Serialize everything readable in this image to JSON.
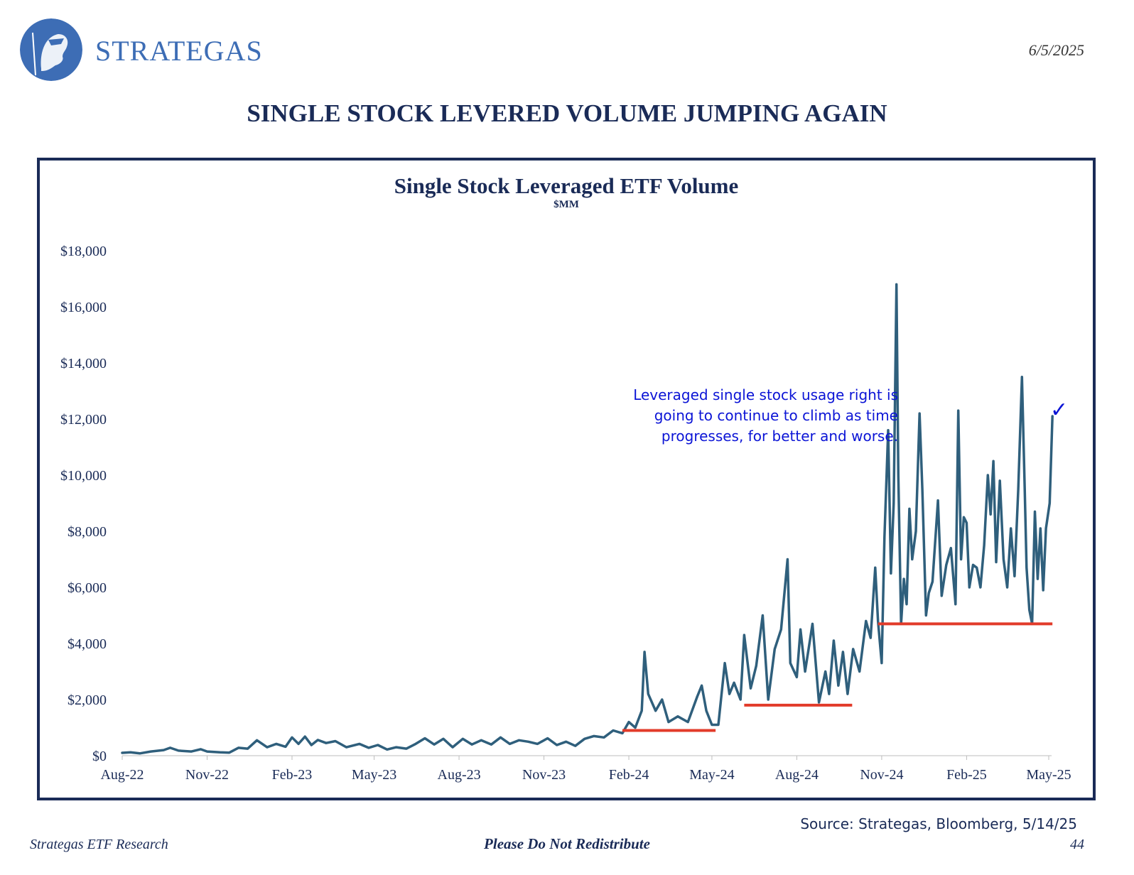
{
  "header": {
    "brand": "STRATEGAS",
    "date": "6/5/2025",
    "title": "SINGLE STOCK LEVERED VOLUME JUMPING AGAIN"
  },
  "annotation": {
    "lines": [
      "Leveraged single stock usage right is",
      "going to continue to climb as time",
      "progresses, for better and worse."
    ],
    "checkmark": "✓"
  },
  "footer": {
    "source": "Source: Strategas, Bloomberg, 5/14/25",
    "left": "Strategas ETF Research",
    "center": "Please Do Not Redistribute",
    "page": "44"
  },
  "colors": {
    "brand_blue": "#3d6db5",
    "navy": "#1a2b57",
    "series": "#2f5f7c",
    "support_line": "#e23b2a",
    "annotation": "#0b14d6"
  },
  "chart_data": {
    "type": "line",
    "title": "Single Stock Leveraged ETF Volume",
    "subtitle": "$MM",
    "xlabel": "",
    "ylabel": "",
    "ylim": [
      0,
      18000
    ],
    "yticks": [
      0,
      2000,
      4000,
      6000,
      8000,
      10000,
      12000,
      14000,
      16000,
      18000
    ],
    "ytick_labels": [
      "$0",
      "$2,000",
      "$4,000",
      "$6,000",
      "$8,000",
      "$10,000",
      "$12,000",
      "$14,000",
      "$16,000",
      "$18,000"
    ],
    "xlim": [
      "2022-08-01",
      "2025-05-01"
    ],
    "xticks": [
      "2022-08-01",
      "2022-11-01",
      "2023-02-01",
      "2023-05-01",
      "2023-08-01",
      "2023-11-01",
      "2024-02-01",
      "2024-05-01",
      "2024-08-01",
      "2024-11-01",
      "2025-02-01",
      "2025-05-01"
    ],
    "xtick_labels": [
      "Aug-22",
      "Nov-22",
      "Feb-23",
      "May-23",
      "Aug-23",
      "Nov-23",
      "Feb-24",
      "May-24",
      "Aug-24",
      "Nov-24",
      "Feb-25",
      "May-25"
    ],
    "grid": false,
    "legend": "none",
    "series": [
      {
        "points": [
          [
            "2022-08-01",
            100
          ],
          [
            "2022-08-10",
            120
          ],
          [
            "2022-08-20",
            80
          ],
          [
            "2022-09-01",
            150
          ],
          [
            "2022-09-15",
            200
          ],
          [
            "2022-09-22",
            280
          ],
          [
            "2022-10-01",
            180
          ],
          [
            "2022-10-15",
            150
          ],
          [
            "2022-10-25",
            230
          ],
          [
            "2022-11-01",
            150
          ],
          [
            "2022-11-15",
            120
          ],
          [
            "2022-11-25",
            110
          ],
          [
            "2022-12-05",
            280
          ],
          [
            "2022-12-15",
            250
          ],
          [
            "2022-12-25",
            550
          ],
          [
            "2023-01-05",
            300
          ],
          [
            "2023-01-15",
            420
          ],
          [
            "2023-01-25",
            320
          ],
          [
            "2023-02-01",
            650
          ],
          [
            "2023-02-08",
            420
          ],
          [
            "2023-02-15",
            680
          ],
          [
            "2023-02-22",
            380
          ],
          [
            "2023-03-01",
            560
          ],
          [
            "2023-03-10",
            450
          ],
          [
            "2023-03-20",
            520
          ],
          [
            "2023-04-01",
            300
          ],
          [
            "2023-04-15",
            420
          ],
          [
            "2023-04-25",
            280
          ],
          [
            "2023-05-05",
            380
          ],
          [
            "2023-05-15",
            220
          ],
          [
            "2023-05-25",
            300
          ],
          [
            "2023-06-05",
            250
          ],
          [
            "2023-06-15",
            420
          ],
          [
            "2023-06-25",
            620
          ],
          [
            "2023-07-05",
            400
          ],
          [
            "2023-07-15",
            600
          ],
          [
            "2023-07-25",
            300
          ],
          [
            "2023-08-05",
            600
          ],
          [
            "2023-08-15",
            400
          ],
          [
            "2023-08-25",
            550
          ],
          [
            "2023-09-05",
            400
          ],
          [
            "2023-09-15",
            650
          ],
          [
            "2023-09-25",
            420
          ],
          [
            "2023-10-05",
            550
          ],
          [
            "2023-10-15",
            500
          ],
          [
            "2023-10-25",
            420
          ],
          [
            "2023-11-05",
            620
          ],
          [
            "2023-11-15",
            380
          ],
          [
            "2023-11-25",
            500
          ],
          [
            "2023-12-05",
            350
          ],
          [
            "2023-12-15",
            600
          ],
          [
            "2023-12-25",
            700
          ],
          [
            "2024-01-05",
            650
          ],
          [
            "2024-01-15",
            900
          ],
          [
            "2024-01-25",
            800
          ],
          [
            "2024-02-01",
            1200
          ],
          [
            "2024-02-08",
            1000
          ],
          [
            "2024-02-15",
            1600
          ],
          [
            "2024-02-18",
            3700
          ],
          [
            "2024-02-22",
            2200
          ],
          [
            "2024-03-01",
            1600
          ],
          [
            "2024-03-08",
            2000
          ],
          [
            "2024-03-15",
            1200
          ],
          [
            "2024-03-25",
            1400
          ],
          [
            "2024-04-05",
            1200
          ],
          [
            "2024-04-15",
            2100
          ],
          [
            "2024-04-20",
            2500
          ],
          [
            "2024-04-25",
            1600
          ],
          [
            "2024-05-01",
            1100
          ],
          [
            "2024-05-08",
            1100
          ],
          [
            "2024-05-15",
            3300
          ],
          [
            "2024-05-20",
            2200
          ],
          [
            "2024-05-25",
            2600
          ],
          [
            "2024-06-01",
            2000
          ],
          [
            "2024-06-05",
            4300
          ],
          [
            "2024-06-12",
            2400
          ],
          [
            "2024-06-18",
            3200
          ],
          [
            "2024-06-25",
            5000
          ],
          [
            "2024-07-01",
            2000
          ],
          [
            "2024-07-08",
            3800
          ],
          [
            "2024-07-15",
            4500
          ],
          [
            "2024-07-22",
            7000
          ],
          [
            "2024-07-25",
            3300
          ],
          [
            "2024-08-01",
            2800
          ],
          [
            "2024-08-05",
            4500
          ],
          [
            "2024-08-10",
            3000
          ],
          [
            "2024-08-18",
            4700
          ],
          [
            "2024-08-25",
            1900
          ],
          [
            "2024-09-01",
            3000
          ],
          [
            "2024-09-05",
            2200
          ],
          [
            "2024-09-10",
            4100
          ],
          [
            "2024-09-15",
            2500
          ],
          [
            "2024-09-20",
            3700
          ],
          [
            "2024-09-25",
            2200
          ],
          [
            "2024-10-01",
            3800
          ],
          [
            "2024-10-08",
            3000
          ],
          [
            "2024-10-15",
            4800
          ],
          [
            "2024-10-20",
            4200
          ],
          [
            "2024-10-25",
            6700
          ],
          [
            "2024-10-28",
            4800
          ],
          [
            "2024-11-01",
            3300
          ],
          [
            "2024-11-04",
            7800
          ],
          [
            "2024-11-08",
            11600
          ],
          [
            "2024-11-11",
            6500
          ],
          [
            "2024-11-14",
            9000
          ],
          [
            "2024-11-17",
            16800
          ],
          [
            "2024-11-19",
            10000
          ],
          [
            "2024-11-22",
            4700
          ],
          [
            "2024-11-25",
            6300
          ],
          [
            "2024-11-28",
            5400
          ],
          [
            "2024-12-01",
            8800
          ],
          [
            "2024-12-04",
            7000
          ],
          [
            "2024-12-08",
            8000
          ],
          [
            "2024-12-12",
            12200
          ],
          [
            "2024-12-15",
            9500
          ],
          [
            "2024-12-19",
            5000
          ],
          [
            "2024-12-22",
            5800
          ],
          [
            "2024-12-26",
            6200
          ],
          [
            "2025-01-01",
            9100
          ],
          [
            "2025-01-05",
            5700
          ],
          [
            "2025-01-10",
            6800
          ],
          [
            "2025-01-15",
            7400
          ],
          [
            "2025-01-20",
            5400
          ],
          [
            "2025-01-23",
            12300
          ],
          [
            "2025-01-26",
            7000
          ],
          [
            "2025-01-29",
            8500
          ],
          [
            "2025-02-01",
            8300
          ],
          [
            "2025-02-04",
            6000
          ],
          [
            "2025-02-08",
            6800
          ],
          [
            "2025-02-12",
            6700
          ],
          [
            "2025-02-16",
            6000
          ],
          [
            "2025-02-20",
            7500
          ],
          [
            "2025-02-24",
            10000
          ],
          [
            "2025-02-27",
            8600
          ],
          [
            "2025-03-02",
            10500
          ],
          [
            "2025-03-05",
            6900
          ],
          [
            "2025-03-09",
            9800
          ],
          [
            "2025-03-13",
            7000
          ],
          [
            "2025-03-17",
            6000
          ],
          [
            "2025-03-21",
            8100
          ],
          [
            "2025-03-25",
            6400
          ],
          [
            "2025-03-29",
            9500
          ],
          [
            "2025-04-02",
            13500
          ],
          [
            "2025-04-05",
            9500
          ],
          [
            "2025-04-07",
            6700
          ],
          [
            "2025-04-10",
            5200
          ],
          [
            "2025-04-13",
            4700
          ],
          [
            "2025-04-16",
            8700
          ],
          [
            "2025-04-19",
            6300
          ],
          [
            "2025-04-22",
            8100
          ],
          [
            "2025-04-25",
            5900
          ],
          [
            "2025-04-28",
            8100
          ],
          [
            "2025-05-02",
            9000
          ],
          [
            "2025-05-05",
            12100
          ]
        ]
      }
    ],
    "support_lines": [
      {
        "x_start": "2024-01-25",
        "x_end": "2024-05-05",
        "y": 900
      },
      {
        "x_start": "2024-06-05",
        "x_end": "2024-09-30",
        "y": 1800
      },
      {
        "x_start": "2024-10-28",
        "x_end": "2025-05-05",
        "y": 4700
      }
    ]
  }
}
